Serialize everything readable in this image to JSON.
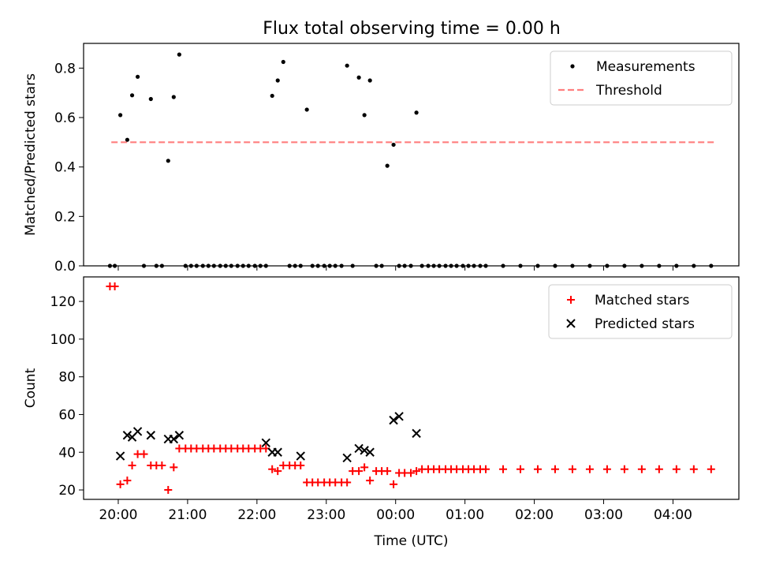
{
  "title": "Flux total observing time = 0.00 h",
  "chart_data": [
    {
      "type": "scatter",
      "ylabel": "Matched/Predicted stars",
      "xlabel": "",
      "xlim": [
        -0.5,
        8.95
      ],
      "ylim": [
        0,
        0.9
      ],
      "yticks": [
        0.0,
        0.2,
        0.4,
        0.6,
        0.8
      ],
      "ytick_labels": [
        "0.0",
        "0.2",
        "0.4",
        "0.6",
        "0.8"
      ],
      "legend_position": "top-right",
      "legend": [
        "Measurements",
        "Threshold"
      ],
      "threshold": {
        "name": "Threshold",
        "y": 0.5,
        "x": [
          -0.1,
          8.6
        ],
        "style": "dashed",
        "color": "#ff7f7f"
      },
      "series": [
        {
          "name": "Measurements",
          "color": "#000000",
          "marker": "dot",
          "x": [
            -0.12,
            -0.05,
            0.03,
            0.13,
            0.2,
            0.28,
            0.37,
            0.47,
            0.55,
            0.63,
            0.72,
            0.8,
            0.88,
            0.97,
            1.05,
            1.13,
            1.22,
            1.3,
            1.38,
            1.47,
            1.55,
            1.63,
            1.72,
            1.8,
            1.88,
            1.97,
            2.05,
            2.13,
            2.22,
            2.3,
            2.38,
            2.47,
            2.55,
            2.63,
            2.72,
            2.8,
            2.88,
            2.97,
            3.05,
            3.13,
            3.22,
            3.3,
            3.38,
            3.47,
            3.55,
            3.63,
            3.72,
            3.8,
            3.88,
            3.97,
            4.05,
            4.13,
            4.22,
            4.3,
            4.38,
            4.47,
            4.55,
            4.63,
            4.72,
            4.8,
            4.88,
            4.97,
            5.05,
            5.13,
            5.22,
            5.3,
            5.55,
            5.8,
            6.05,
            6.3,
            6.55,
            6.8,
            7.05,
            7.3,
            7.55,
            7.8,
            8.05,
            8.3,
            8.55
          ],
          "y": [
            0.0,
            0.0,
            0.61,
            0.51,
            0.69,
            0.765,
            0.0,
            0.675,
            0.0,
            0.0,
            0.425,
            0.683,
            0.855,
            0.0,
            0.0,
            0.0,
            0.0,
            0.0,
            0.0,
            0.0,
            0.0,
            0.0,
            0.0,
            0.0,
            0.0,
            0.0,
            0.0,
            0.0,
            0.688,
            0.75,
            0.825,
            0.0,
            0.0,
            0.0,
            0.632,
            0.0,
            0.0,
            0.0,
            0.0,
            0.0,
            0.0,
            0.81,
            0.0,
            0.762,
            0.61,
            0.75,
            0.0,
            0.0,
            0.405,
            0.49,
            0.0,
            0.0,
            0.0,
            0.62,
            0.0,
            0.0,
            0.0,
            0.0,
            0.0,
            0.0,
            0.0,
            0.0,
            0.0,
            0.0,
            0.0,
            0.0,
            0.0,
            0.0,
            0.0,
            0.0,
            0.0,
            0.0,
            0.0,
            0.0,
            0.0,
            0.0,
            0.0,
            0.0,
            0.0
          ]
        }
      ]
    },
    {
      "type": "scatter",
      "ylabel": "Count",
      "xlabel": "Time (UTC)",
      "xlim": [
        -0.5,
        8.95
      ],
      "ylim": [
        15,
        133
      ],
      "yticks": [
        20,
        40,
        60,
        80,
        100,
        120
      ],
      "ytick_labels": [
        "20",
        "40",
        "60",
        "80",
        "100",
        "120"
      ],
      "xticks": [
        0,
        1,
        2,
        3,
        4,
        5,
        6,
        7,
        8
      ],
      "xtick_labels": [
        "20:00",
        "21:00",
        "22:00",
        "23:00",
        "00:00",
        "01:00",
        "02:00",
        "03:00",
        "04:00"
      ],
      "legend_position": "top-right",
      "legend": [
        "Matched stars",
        "Predicted stars"
      ],
      "series": [
        {
          "name": "Matched stars",
          "color": "#ff0000",
          "marker": "plus",
          "x": [
            -0.12,
            -0.05,
            0.03,
            0.13,
            0.2,
            0.28,
            0.37,
            0.47,
            0.55,
            0.63,
            0.72,
            0.8,
            0.88,
            0.97,
            1.05,
            1.13,
            1.22,
            1.3,
            1.38,
            1.47,
            1.55,
            1.63,
            1.72,
            1.8,
            1.88,
            1.97,
            2.05,
            2.13,
            2.22,
            2.3,
            2.38,
            2.47,
            2.55,
            2.63,
            2.72,
            2.8,
            2.88,
            2.97,
            3.05,
            3.13,
            3.22,
            3.3,
            3.38,
            3.47,
            3.55,
            3.63,
            3.72,
            3.8,
            3.88,
            3.97,
            4.05,
            4.13,
            4.22,
            4.3,
            4.38,
            4.47,
            4.55,
            4.63,
            4.72,
            4.8,
            4.88,
            4.97,
            5.05,
            5.13,
            5.22,
            5.3,
            5.55,
            5.8,
            6.05,
            6.3,
            6.55,
            6.8,
            7.05,
            7.3,
            7.55,
            7.8,
            8.05,
            8.3,
            8.55
          ],
          "y": [
            128,
            128,
            23,
            25,
            33,
            39,
            39,
            33,
            33,
            33,
            20,
            32,
            42,
            42,
            42,
            42,
            42,
            42,
            42,
            42,
            42,
            42,
            42,
            42,
            42,
            42,
            42,
            42,
            31,
            30,
            33,
            33,
            33,
            33,
            24,
            24,
            24,
            24,
            24,
            24,
            24,
            24,
            30,
            30,
            32,
            25,
            30,
            30,
            30,
            23,
            29,
            29,
            29,
            30,
            31,
            31,
            31,
            31,
            31,
            31,
            31,
            31,
            31,
            31,
            31,
            31,
            31,
            31,
            31,
            31,
            31,
            31,
            31,
            31,
            31,
            31,
            31,
            31,
            31
          ]
        },
        {
          "name": "Predicted stars",
          "color": "#000000",
          "marker": "x",
          "x": [
            0.03,
            0.13,
            0.2,
            0.28,
            0.47,
            0.72,
            0.8,
            0.88,
            2.13,
            2.22,
            2.3,
            2.63,
            3.3,
            3.47,
            3.55,
            3.63,
            3.97,
            4.05,
            4.3
          ],
          "y": [
            38,
            49,
            48,
            51,
            49,
            47,
            47,
            49,
            45,
            40,
            40,
            38,
            37,
            42,
            41,
            40,
            57,
            59,
            50
          ]
        }
      ]
    }
  ]
}
